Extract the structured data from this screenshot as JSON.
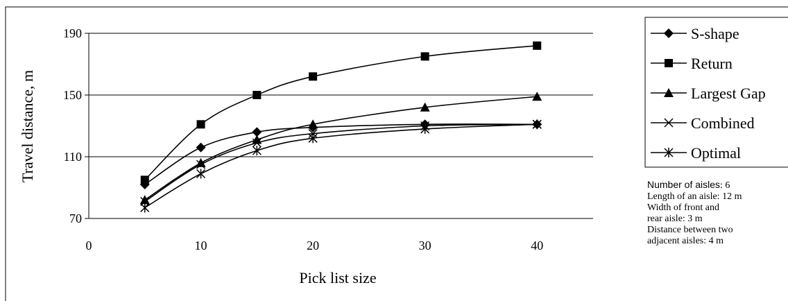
{
  "chart_data": {
    "type": "line",
    "title": "",
    "xlabel": "Pick list size",
    "ylabel": "Travel distance, m",
    "x_range": [
      0,
      45
    ],
    "ylim": [
      70,
      190
    ],
    "x_ticks": [
      0,
      10,
      20,
      30,
      40
    ],
    "y_ticks": [
      70,
      110,
      150,
      190
    ],
    "grid": "horizontal",
    "legend_position": "right",
    "x": [
      5,
      10,
      15,
      20,
      30,
      40
    ],
    "series": [
      {
        "name": "S-shape",
        "marker": "diamond",
        "values": [
          92,
          116,
          126,
          129,
          131,
          131
        ]
      },
      {
        "name": "Return",
        "marker": "square",
        "values": [
          95,
          131,
          150,
          162,
          175,
          182
        ]
      },
      {
        "name": "Largest Gap",
        "marker": "triangle",
        "values": [
          82,
          106,
          121,
          131,
          142,
          149
        ]
      },
      {
        "name": "Combined",
        "marker": "x",
        "values": [
          81,
          105,
          119,
          125,
          130,
          131
        ]
      },
      {
        "name": "Optimal",
        "marker": "star",
        "values": [
          77,
          99,
          114,
          122,
          128,
          131
        ]
      }
    ]
  },
  "note": {
    "number_of_aisles": {
      "label": "Number of aisles",
      "value": ": 6"
    },
    "lines": [
      "Length of an aisle: 12 m",
      "Width of front and",
      "rear aisle: 3 m",
      "Distance between two",
      "adjacent aisles: 4 m"
    ]
  }
}
